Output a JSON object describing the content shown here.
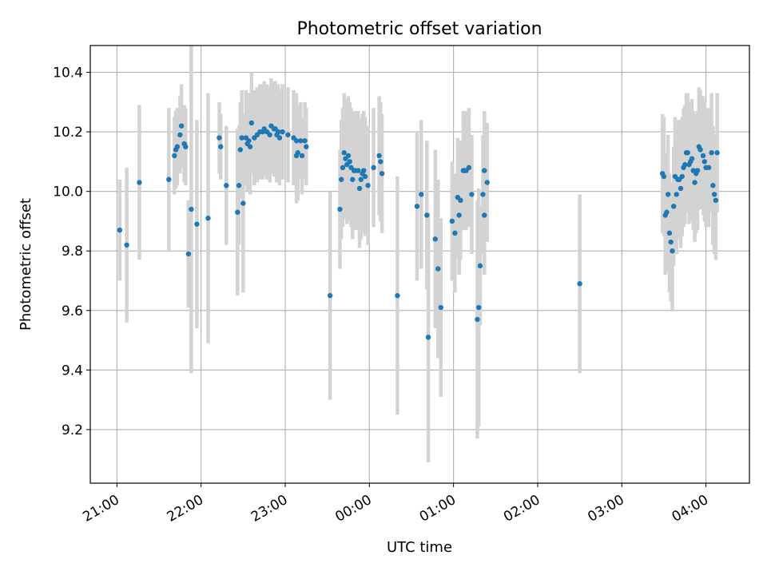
{
  "chart_data": {
    "type": "scatter",
    "title": "Photometric offset variation",
    "xlabel": "UTC time",
    "ylabel": "Photometric offset",
    "x_ticks": [
      "21:00",
      "22:00",
      "23:00",
      "00:00",
      "01:00",
      "02:00",
      "03:00",
      "04:00"
    ],
    "y_ticks": [
      "9.2",
      "9.4",
      "9.6",
      "9.8",
      "10.0",
      "10.2",
      "10.4"
    ],
    "xlim": [
      "20:41",
      "04:31"
    ],
    "ylim": [
      9.02,
      10.49
    ],
    "grid": true,
    "colors": {
      "points": "#1f77b4",
      "error_bars": "#d3d3d3",
      "grid": "#b0b0b0"
    },
    "series": [
      {
        "points": [
          [
            "21:02",
            9.87,
            0.17
          ],
          [
            "21:07",
            9.82,
            0.26
          ],
          [
            "21:16",
            10.03,
            0.26
          ],
          [
            "21:37",
            10.04,
            0.24
          ],
          [
            "21:41",
            10.12,
            0.13
          ],
          [
            "21:42",
            10.14,
            0.13
          ],
          [
            "21:43",
            10.15,
            0.13
          ],
          [
            "21:45",
            10.19,
            0.13
          ],
          [
            "21:46",
            10.22,
            0.14
          ],
          [
            "21:48",
            10.16,
            0.13
          ],
          [
            "21:49",
            10.15,
            0.13
          ],
          [
            "21:51",
            9.79,
            0.18
          ],
          [
            "21:53",
            9.94,
            0.55
          ],
          [
            "21:57",
            9.89,
            0.35
          ],
          [
            "22:05",
            9.91,
            0.42
          ],
          [
            "22:13",
            10.18,
            0.12
          ],
          [
            "22:14",
            10.15,
            0.11
          ],
          [
            "22:18",
            10.02,
            0.2
          ],
          [
            "22:26",
            9.93,
            0.28
          ],
          [
            "22:27",
            10.02,
            0.2
          ],
          [
            "22:28",
            10.14,
            0.16
          ],
          [
            "22:29",
            10.18,
            0.16
          ],
          [
            "22:30",
            9.96,
            0.3
          ],
          [
            "22:32",
            10.18,
            0.16
          ],
          [
            "22:33",
            10.16,
            0.16
          ],
          [
            "22:34",
            10.17,
            0.16
          ],
          [
            "22:35",
            10.15,
            0.16
          ],
          [
            "22:36",
            10.23,
            0.17
          ],
          [
            "22:38",
            10.18,
            0.16
          ],
          [
            "22:40",
            10.19,
            0.16
          ],
          [
            "22:42",
            10.2,
            0.16
          ],
          [
            "22:44",
            10.2,
            0.16
          ],
          [
            "22:45",
            10.21,
            0.16
          ],
          [
            "22:47",
            10.2,
            0.16
          ],
          [
            "22:49",
            10.19,
            0.16
          ],
          [
            "22:50",
            10.22,
            0.16
          ],
          [
            "22:52",
            10.21,
            0.16
          ],
          [
            "22:53",
            10.21,
            0.16
          ],
          [
            "22:54",
            10.19,
            0.16
          ],
          [
            "22:55",
            10.2,
            0.16
          ],
          [
            "22:56",
            10.18,
            0.16
          ],
          [
            "22:58",
            10.2,
            0.16
          ],
          [
            "23:02",
            10.19,
            0.16
          ],
          [
            "23:06",
            10.18,
            0.16
          ],
          [
            "23:08",
            10.17,
            0.16
          ],
          [
            "23:08",
            10.12,
            0.16
          ],
          [
            "23:09",
            10.13,
            0.16
          ],
          [
            "23:11",
            10.17,
            0.13
          ],
          [
            "23:12",
            10.12,
            0.13
          ],
          [
            "23:14",
            10.17,
            0.13
          ],
          [
            "23:15",
            10.15,
            0.13
          ],
          [
            "23:32",
            9.65,
            0.35
          ],
          [
            "23:39",
            9.94,
            0.2
          ],
          [
            "23:40",
            10.04,
            0.2
          ],
          [
            "23:41",
            10.08,
            0.2
          ],
          [
            "23:42",
            10.13,
            0.2
          ],
          [
            "23:43",
            10.11,
            0.2
          ],
          [
            "23:44",
            10.09,
            0.2
          ],
          [
            "23:45",
            10.12,
            0.2
          ],
          [
            "23:46",
            10.1,
            0.2
          ],
          [
            "23:47",
            10.08,
            0.2
          ],
          [
            "23:48",
            10.04,
            0.2
          ],
          [
            "23:49",
            10.07,
            0.2
          ],
          [
            "23:50",
            10.07,
            0.2
          ],
          [
            "23:52",
            10.07,
            0.2
          ],
          [
            "23:53",
            10.01,
            0.2
          ],
          [
            "23:54",
            10.04,
            0.2
          ],
          [
            "23:55",
            10.06,
            0.2
          ],
          [
            "23:56",
            10.07,
            0.2
          ],
          [
            "23:57",
            10.05,
            0.2
          ],
          [
            "23:59",
            10.02,
            0.2
          ],
          [
            "00:03",
            10.08,
            0.2
          ],
          [
            "00:07",
            10.12,
            0.2
          ],
          [
            "00:08",
            10.1,
            0.2
          ],
          [
            "00:09",
            10.06,
            0.2
          ],
          [
            "00:20",
            9.65,
            0.4
          ],
          [
            "00:34",
            9.95,
            0.25
          ],
          [
            "00:37",
            9.99,
            0.25
          ],
          [
            "00:41",
            9.92,
            0.25
          ],
          [
            "00:42",
            9.51,
            0.42
          ],
          [
            "00:47",
            9.84,
            0.3
          ],
          [
            "00:49",
            9.74,
            0.3
          ],
          [
            "00:51",
            9.61,
            0.3
          ],
          [
            "00:59",
            9.9,
            0.2
          ],
          [
            "01:01",
            9.86,
            0.2
          ],
          [
            "01:03",
            9.98,
            0.2
          ],
          [
            "01:04",
            9.92,
            0.2
          ],
          [
            "01:05",
            9.97,
            0.2
          ],
          [
            "01:07",
            10.07,
            0.2
          ],
          [
            "01:08",
            10.07,
            0.2
          ],
          [
            "01:09",
            10.07,
            0.2
          ],
          [
            "01:11",
            10.08,
            0.2
          ],
          [
            "01:13",
            9.99,
            0.2
          ],
          [
            "01:17",
            9.57,
            0.4
          ],
          [
            "01:18",
            9.61,
            0.4
          ],
          [
            "01:19",
            9.75,
            0.2
          ],
          [
            "01:21",
            9.99,
            0.2
          ],
          [
            "01:22",
            10.07,
            0.2
          ],
          [
            "01:22",
            9.92,
            0.2
          ],
          [
            "01:24",
            10.03,
            0.2
          ],
          [
            "02:30",
            9.69,
            0.3
          ],
          [
            "03:29",
            10.06,
            0.2
          ],
          [
            "03:30",
            10.05,
            0.2
          ],
          [
            "03:31",
            9.92,
            0.2
          ],
          [
            "03:32",
            9.93,
            0.2
          ],
          [
            "03:33",
            9.99,
            0.2
          ],
          [
            "03:34",
            9.86,
            0.2
          ],
          [
            "03:35",
            9.83,
            0.2
          ],
          [
            "03:36",
            9.8,
            0.2
          ],
          [
            "03:37",
            9.95,
            0.2
          ],
          [
            "03:38",
            10.05,
            0.2
          ],
          [
            "03:39",
            9.99,
            0.2
          ],
          [
            "03:40",
            10.04,
            0.2
          ],
          [
            "03:41",
            10.04,
            0.2
          ],
          [
            "03:42",
            10.01,
            0.2
          ],
          [
            "03:43",
            10.05,
            0.2
          ],
          [
            "03:44",
            10.08,
            0.2
          ],
          [
            "03:45",
            10.09,
            0.2
          ],
          [
            "03:46",
            10.13,
            0.2
          ],
          [
            "03:47",
            10.13,
            0.2
          ],
          [
            "03:48",
            10.09,
            0.2
          ],
          [
            "03:49",
            10.1,
            0.2
          ],
          [
            "03:50",
            10.11,
            0.2
          ],
          [
            "03:51",
            10.07,
            0.2
          ],
          [
            "03:52",
            10.03,
            0.2
          ],
          [
            "03:53",
            10.06,
            0.2
          ],
          [
            "03:54",
            10.07,
            0.2
          ],
          [
            "03:55",
            10.15,
            0.2
          ],
          [
            "03:56",
            10.14,
            0.2
          ],
          [
            "03:58",
            10.12,
            0.2
          ],
          [
            "03:59",
            10.1,
            0.2
          ],
          [
            "04:00",
            10.08,
            0.2
          ],
          [
            "04:02",
            10.08,
            0.2
          ],
          [
            "04:04",
            10.13,
            0.2
          ],
          [
            "04:05",
            10.02,
            0.2
          ],
          [
            "04:06",
            9.99,
            0.2
          ],
          [
            "04:07",
            9.97,
            0.2
          ],
          [
            "04:08",
            10.13,
            0.2
          ]
        ]
      }
    ]
  }
}
